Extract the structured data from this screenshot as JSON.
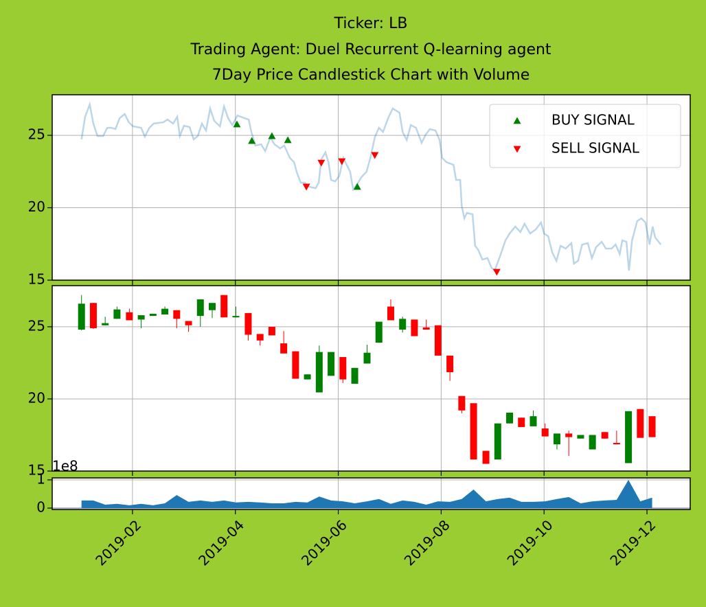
{
  "chart_data": [
    {
      "type": "line",
      "title": [
        "Ticker: LB",
        "Trading Agent: Duel Recurrent Q-learning agent",
        "7Day Price Candlestick Chart with Volume"
      ],
      "x": [
        0.01,
        0.08,
        0.17,
        0.24,
        0.32,
        0.43,
        0.51,
        0.59,
        0.67,
        0.75,
        0.85,
        0.93,
        1.01,
        1.17,
        1.24,
        1.33,
        1.41,
        1.6,
        1.68,
        1.79,
        1.87,
        1.92,
        2.0,
        2.11,
        2.19,
        2.27,
        2.35,
        2.43,
        2.51,
        2.59,
        2.7,
        2.78,
        2.86,
        2.94,
        3.04,
        3.18,
        3.26,
        3.31,
        3.39,
        3.5,
        3.58,
        3.68,
        3.76,
        3.87,
        3.95,
        4.06,
        4.14,
        4.19,
        4.27,
        4.35,
        4.43,
        4.56,
        4.62,
        4.67,
        4.75,
        4.81,
        4.86,
        4.94,
        5.02,
        5.1,
        5.15,
        5.23,
        5.29,
        5.37,
        5.45,
        5.55,
        5.63,
        5.71,
        5.79,
        5.87,
        5.98,
        6.06,
        6.19,
        6.25,
        6.33,
        6.41,
        6.51,
        6.62,
        6.7,
        6.78,
        6.89,
        6.97,
        7.02,
        7.1,
        7.24,
        7.29,
        7.37,
        7.4,
        7.45,
        7.5,
        7.61,
        7.66,
        7.72,
        7.8,
        7.9,
        7.98,
        8.04,
        8.14,
        8.25,
        8.33,
        8.44,
        8.54,
        8.62,
        8.73,
        8.84,
        8.94,
        9.0,
        9.08,
        9.16,
        9.24,
        9.32,
        9.42,
        9.53,
        9.58,
        9.66,
        9.74,
        9.85,
        9.93,
        10.01,
        10.12,
        10.2,
        10.31,
        10.39,
        10.47,
        10.52,
        10.6,
        10.65,
        10.71,
        10.81,
        10.89,
        10.97,
        11.05,
        11.11,
        11.16,
        11.27
      ],
      "values": [
        24.72,
        26.28,
        27.13,
        25.81,
        24.95,
        24.95,
        25.52,
        25.52,
        25.43,
        26.18,
        26.47,
        25.9,
        25.62,
        25.52,
        24.91,
        25.52,
        25.81,
        25.9,
        26.09,
        25.81,
        26.28,
        24.95,
        25.66,
        25.57,
        24.72,
        24.95,
        25.81,
        25.33,
        26.85,
        26.0,
        25.62,
        26.99,
        26.18,
        25.71,
        26.37,
        26.18,
        26.09,
        25.24,
        24.29,
        24.38,
        23.91,
        24.86,
        24.38,
        24.1,
        24.29,
        23.44,
        23.15,
        22.49,
        21.73,
        21.73,
        21.45,
        21.35,
        21.73,
        23.34,
        23.82,
        23.15,
        21.92,
        21.82,
        22.2,
        23.44,
        23.06,
        22.49,
        21.26,
        21.64,
        22.11,
        22.49,
        23.53,
        24.86,
        25.52,
        25.24,
        26.28,
        26.85,
        26.56,
        25.24,
        24.67,
        25.71,
        25.52,
        24.48,
        25.05,
        25.43,
        25.33,
        24.67,
        23.44,
        23.15,
        22.96,
        21.92,
        21.92,
        20.12,
        19.27,
        19.64,
        19.55,
        17.37,
        17.09,
        16.42,
        16.52,
        15.85,
        15.66,
        16.61,
        17.75,
        18.22,
        18.7,
        18.32,
        18.89,
        18.22,
        18.51,
        18.98,
        18.22,
        18.03,
        16.9,
        16.33,
        17.37,
        17.18,
        17.56,
        16.14,
        16.33,
        17.46,
        17.56,
        16.52,
        17.27,
        17.65,
        17.18,
        17.18,
        17.46,
        16.8,
        17.75,
        17.65,
        15.66,
        17.75,
        19.08,
        19.27,
        18.98,
        17.46,
        18.7,
        17.94,
        17.46
      ],
      "color": "#1f77b4",
      "alpha": 0.3,
      "signals": [
        {
          "name": "BUY SIGNAL",
          "color": "#008000",
          "marker": "^",
          "x": [
            3.03,
            3.32,
            3.71,
            4.02,
            5.37
          ],
          "values": [
            25.76,
            24.62,
            24.95,
            24.67,
            21.45
          ]
        },
        {
          "name": "SELL SIGNAL",
          "color": "#ff0000",
          "marker": "v",
          "x": [
            4.38,
            4.67,
            5.07,
            5.71,
            8.08
          ],
          "values": [
            21.45,
            23.1,
            23.2,
            23.63,
            15.57
          ]
        }
      ],
      "legend": "upper right",
      "ylim": [
        15,
        27.8
      ],
      "yticks": [
        15,
        20,
        25
      ],
      "grid": true
    },
    {
      "type": "candlestick",
      "x": [
        0.01,
        0.24,
        0.47,
        0.7,
        0.94,
        1.17,
        1.4,
        1.63,
        1.86,
        2.09,
        2.32,
        2.55,
        2.78,
        3.01,
        3.25,
        3.48,
        3.71,
        3.94,
        4.17,
        4.4,
        4.63,
        4.86,
        5.09,
        5.32,
        5.56,
        5.79,
        6.02,
        6.25,
        6.48,
        6.71,
        6.94,
        7.17,
        7.4,
        7.63,
        7.87,
        8.1,
        8.33,
        8.56,
        8.79,
        9.02,
        9.25,
        9.48,
        9.71,
        9.94,
        10.18,
        10.41,
        10.64,
        10.87,
        11.1
      ],
      "open": [
        24.8,
        26.65,
        25.1,
        25.55,
        26.0,
        25.5,
        25.75,
        25.85,
        26.15,
        25.4,
        25.75,
        26.15,
        27.2,
        25.65,
        25.95,
        24.5,
        25.0,
        23.85,
        23.3,
        21.35,
        20.45,
        21.6,
        22.9,
        21.05,
        22.45,
        23.9,
        26.4,
        24.8,
        25.5,
        24.95,
        25.1,
        23.0,
        20.2,
        19.7,
        16.4,
        15.8,
        18.3,
        18.7,
        18.1,
        17.95,
        16.85,
        17.6,
        17.25,
        16.5,
        17.7,
        16.95,
        15.55,
        19.3,
        18.8
      ],
      "high": [
        27.2,
        26.65,
        25.7,
        26.4,
        26.25,
        25.8,
        25.9,
        26.4,
        26.15,
        25.4,
        26.9,
        26.65,
        27.2,
        26.4,
        25.95,
        24.5,
        25.0,
        24.7,
        23.3,
        21.7,
        23.7,
        23.25,
        22.9,
        22.15,
        23.75,
        25.35,
        26.9,
        25.7,
        25.5,
        25.5,
        25.1,
        23.0,
        20.2,
        19.7,
        16.4,
        18.3,
        19.05,
        18.7,
        19.2,
        18.3,
        17.6,
        17.8,
        17.5,
        17.5,
        17.7,
        17.8,
        19.15,
        19.3,
        18.8
      ],
      "low": [
        24.75,
        24.85,
        25.1,
        25.55,
        25.45,
        24.9,
        25.75,
        25.85,
        24.9,
        24.65,
        25.0,
        25.6,
        25.65,
        25.65,
        24.05,
        23.7,
        24.4,
        23.15,
        21.4,
        21.35,
        20.45,
        21.6,
        21.1,
        21.05,
        22.45,
        23.9,
        25.45,
        24.6,
        24.35,
        24.8,
        23.0,
        21.25,
        19.0,
        15.8,
        15.5,
        15.8,
        18.3,
        18.05,
        18.1,
        17.4,
        16.5,
        16.05,
        17.25,
        16.5,
        17.25,
        16.85,
        15.55,
        17.3,
        17.35
      ],
      "close": [
        26.6,
        24.9,
        25.25,
        26.2,
        25.45,
        25.8,
        25.9,
        26.25,
        25.55,
        25.1,
        26.9,
        26.65,
        25.65,
        25.75,
        24.45,
        24.05,
        24.4,
        23.15,
        21.4,
        21.7,
        23.25,
        23.25,
        21.35,
        22.15,
        23.2,
        25.35,
        25.45,
        25.55,
        24.35,
        24.8,
        23.0,
        21.85,
        19.2,
        15.8,
        15.5,
        18.3,
        19.05,
        18.05,
        18.8,
        17.4,
        17.6,
        17.35,
        17.5,
        17.5,
        17.25,
        16.85,
        19.15,
        17.3,
        17.35
      ],
      "up_color": "#008000",
      "down_color": "#ff0000",
      "ylim": [
        15,
        27.85
      ],
      "yticks": [
        15,
        20,
        25
      ],
      "grid": true
    },
    {
      "type": "area",
      "values": [
        0.27,
        0.27,
        0.12,
        0.15,
        0.1,
        0.15,
        0.1,
        0.17,
        0.46,
        0.22,
        0.27,
        0.22,
        0.27,
        0.2,
        0.22,
        0.2,
        0.17,
        0.17,
        0.22,
        0.2,
        0.41,
        0.27,
        0.24,
        0.17,
        0.24,
        0.32,
        0.15,
        0.27,
        0.22,
        0.12,
        0.24,
        0.22,
        0.32,
        0.66,
        0.24,
        0.32,
        0.37,
        0.22,
        0.22,
        0.24,
        0.32,
        0.39,
        0.17,
        0.24,
        0.27,
        0.29,
        1.0,
        0.24,
        0.37
      ],
      "color": "#1f77b4",
      "offset_label": "1e8",
      "ylim": [
        -0.05,
        1.07
      ],
      "yticks": [
        0,
        1
      ],
      "xlim": [
        -0.56,
        11.84
      ],
      "xticks": [
        {
          "value": 1,
          "label": "2019-02"
        },
        {
          "value": 3,
          "label": "2019-04"
        },
        {
          "value": 5,
          "label": "2019-06"
        },
        {
          "value": 7,
          "label": "2019-08"
        },
        {
          "value": 9,
          "label": "2019-10"
        },
        {
          "value": 11,
          "label": "2019-12"
        }
      ],
      "grid": true
    }
  ]
}
